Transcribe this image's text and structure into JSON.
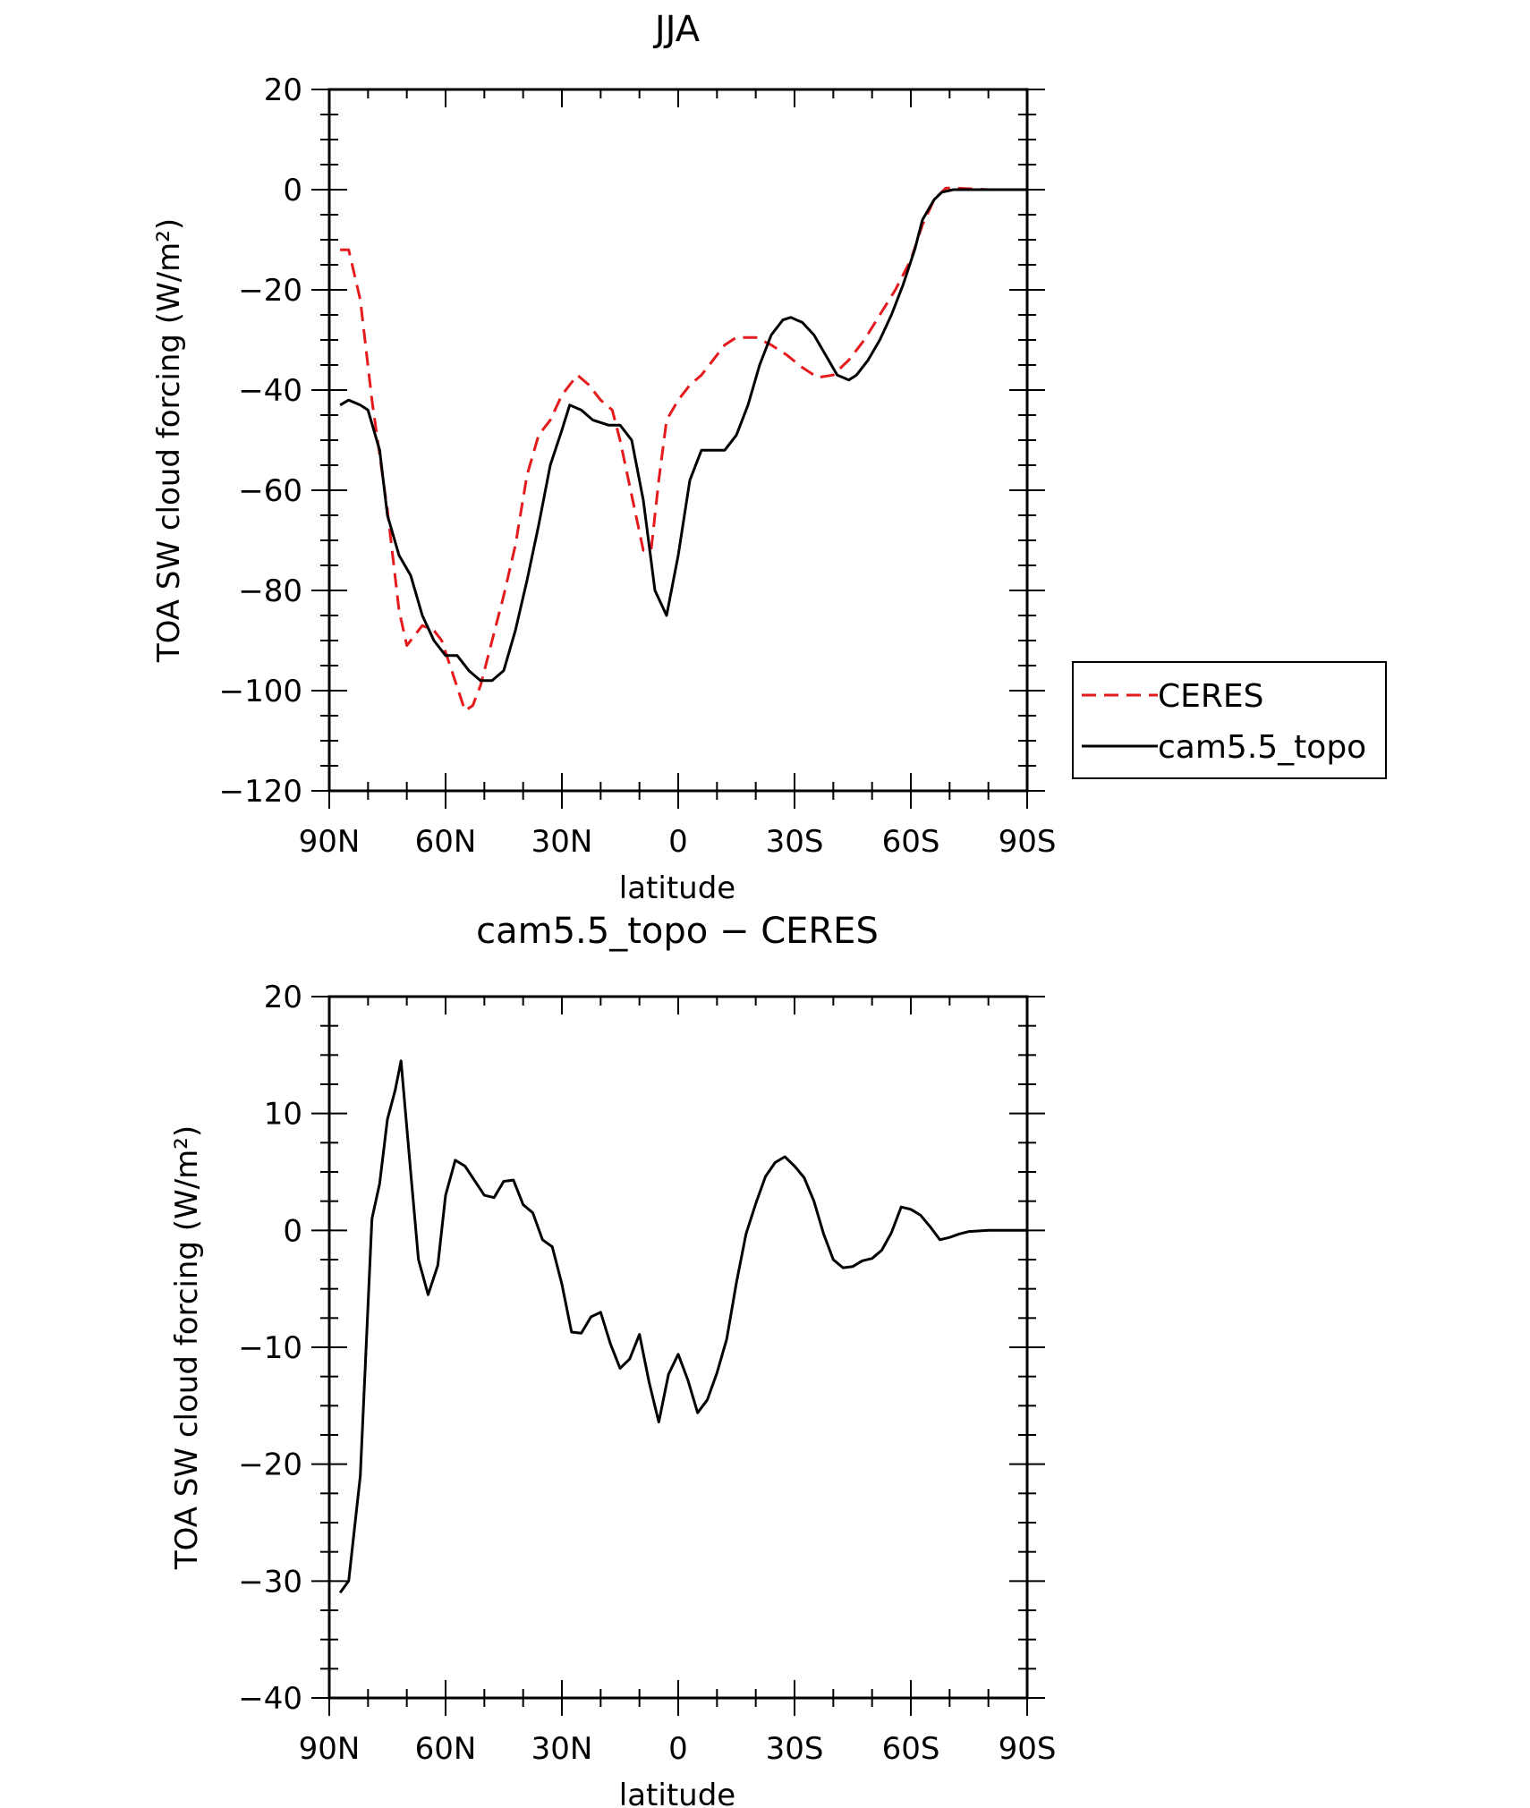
{
  "chart_data": [
    {
      "type": "line",
      "title": "JJA",
      "xlabel": "latitude",
      "ylabel": "TOA SW cloud forcing (W/m²)",
      "xticks": [
        "90N",
        "60N",
        "30N",
        "0",
        "30S",
        "60S",
        "90S"
      ],
      "xlim": [
        90,
        -90
      ],
      "ylim": [
        -120,
        20
      ],
      "yticks": [
        "20",
        "0",
        "−20",
        "−40",
        "−60",
        "−80",
        "−100",
        "−120"
      ],
      "legend": {
        "placement": "right",
        "entries": [
          "CERES",
          "cam5.5_topo"
        ]
      },
      "series": [
        {
          "name": "CERES",
          "color": "#e41a1c",
          "style": "dashed",
          "points": [
            [
              87.2,
              -12
            ],
            [
              85,
              -12
            ],
            [
              82,
              -22
            ],
            [
              79,
              -42
            ],
            [
              75,
              -64
            ],
            [
              72,
              -84
            ],
            [
              70,
              -91
            ],
            [
              66,
              -87
            ],
            [
              63,
              -88
            ],
            [
              61,
              -90
            ],
            [
              58,
              -97
            ],
            [
              55,
              -104
            ],
            [
              53,
              -103
            ],
            [
              51,
              -99
            ],
            [
              48,
              -90
            ],
            [
              45,
              -81
            ],
            [
              42,
              -71
            ],
            [
              39,
              -57
            ],
            [
              36,
              -49
            ],
            [
              33,
              -46
            ],
            [
              30,
              -41
            ],
            [
              26,
              -37
            ],
            [
              23,
              -39
            ],
            [
              20,
              -42
            ],
            [
              17,
              -44
            ],
            [
              15,
              -50
            ],
            [
              12,
              -61
            ],
            [
              9,
              -72
            ],
            [
              7,
              -72
            ],
            [
              5,
              -58
            ],
            [
              3,
              -46
            ],
            [
              0,
              -42
            ],
            [
              -3,
              -39
            ],
            [
              -6,
              -37
            ],
            [
              -9,
              -34
            ],
            [
              -12,
              -31
            ],
            [
              -15,
              -29.5
            ],
            [
              -20,
              -29.5
            ],
            [
              -24,
              -31
            ],
            [
              -28,
              -33
            ],
            [
              -32,
              -35.5
            ],
            [
              -36,
              -37.5
            ],
            [
              -40,
              -37
            ],
            [
              -44,
              -34
            ],
            [
              -48,
              -30
            ],
            [
              -52,
              -25
            ],
            [
              -56,
              -20
            ],
            [
              -60,
              -14
            ],
            [
              -63,
              -7
            ],
            [
              -66,
              -2
            ],
            [
              -69,
              0.3
            ],
            [
              -72,
              0.3
            ],
            [
              -80,
              0
            ],
            [
              -90,
              0
            ]
          ]
        },
        {
          "name": "cam5.5_topo",
          "color": "#000000",
          "style": "solid",
          "points": [
            [
              87.2,
              -43
            ],
            [
              85,
              -42
            ],
            [
              82,
              -43
            ],
            [
              80,
              -44
            ],
            [
              77,
              -52
            ],
            [
              75,
              -65
            ],
            [
              72,
              -73
            ],
            [
              69,
              -77
            ],
            [
              66,
              -85
            ],
            [
              63,
              -90
            ],
            [
              60,
              -93
            ],
            [
              57,
              -93
            ],
            [
              54,
              -96
            ],
            [
              51,
              -98
            ],
            [
              48,
              -98
            ],
            [
              45,
              -96
            ],
            [
              42,
              -88
            ],
            [
              39,
              -78
            ],
            [
              36,
              -67
            ],
            [
              33,
              -55
            ],
            [
              30,
              -48
            ],
            [
              28,
              -43
            ],
            [
              25,
              -44
            ],
            [
              22,
              -46
            ],
            [
              18,
              -47
            ],
            [
              15,
              -47
            ],
            [
              12,
              -50
            ],
            [
              9,
              -62
            ],
            [
              6,
              -80
            ],
            [
              3,
              -85
            ],
            [
              0,
              -73
            ],
            [
              -3,
              -58
            ],
            [
              -6,
              -52
            ],
            [
              -9,
              -52
            ],
            [
              -12,
              -52
            ],
            [
              -15,
              -49
            ],
            [
              -18,
              -43
            ],
            [
              -21,
              -35
            ],
            [
              -24,
              -29
            ],
            [
              -27,
              -26
            ],
            [
              -29,
              -25.5
            ],
            [
              -32,
              -26.5
            ],
            [
              -35,
              -29
            ],
            [
              -38,
              -33
            ],
            [
              -41,
              -37
            ],
            [
              -44,
              -38
            ],
            [
              -46,
              -37
            ],
            [
              -49,
              -34
            ],
            [
              -52,
              -30
            ],
            [
              -55,
              -25
            ],
            [
              -58,
              -19
            ],
            [
              -61,
              -12
            ],
            [
              -63,
              -6
            ],
            [
              -66,
              -2
            ],
            [
              -68,
              -0.5
            ],
            [
              -71,
              0
            ],
            [
              -75,
              0
            ],
            [
              -90,
              0
            ]
          ]
        }
      ]
    },
    {
      "type": "line",
      "title": "cam5.5_topo − CERES",
      "xlabel": "latitude",
      "ylabel": "TOA SW cloud forcing (W/m²)",
      "xticks": [
        "90N",
        "60N",
        "30N",
        "0",
        "30S",
        "60S",
        "90S"
      ],
      "xlim": [
        90,
        -90
      ],
      "ylim": [
        -40,
        20
      ],
      "yticks": [
        "20",
        "10",
        "0",
        "−10",
        "−20",
        "−30",
        "−40"
      ],
      "series": [
        {
          "color": "#000000",
          "style": "solid",
          "points": [
            [
              87.2,
              -31
            ],
            [
              85,
              -30
            ],
            [
              82,
              -21
            ],
            [
              79,
              1
            ],
            [
              77,
              4
            ],
            [
              75,
              9.5
            ],
            [
              73,
              12
            ],
            [
              71.5,
              14.5
            ],
            [
              69,
              5
            ],
            [
              67,
              -2.5
            ],
            [
              64.5,
              -5.5
            ],
            [
              62,
              -3
            ],
            [
              60,
              3
            ],
            [
              57.5,
              6
            ],
            [
              55,
              5.5
            ],
            [
              52,
              4
            ],
            [
              50,
              3
            ],
            [
              47.5,
              2.8
            ],
            [
              45,
              4.2
            ],
            [
              42.5,
              4.3
            ],
            [
              40,
              2.2
            ],
            [
              37.5,
              1.5
            ],
            [
              35,
              -0.8
            ],
            [
              32.5,
              -1.4
            ],
            [
              30,
              -4.6
            ],
            [
              27.5,
              -8.7
            ],
            [
              25,
              -8.8
            ],
            [
              22.5,
              -7.4
            ],
            [
              20,
              -7
            ],
            [
              17.5,
              -9.7
            ],
            [
              15,
              -11.8
            ],
            [
              12.5,
              -11
            ],
            [
              10,
              -8.9
            ],
            [
              7.5,
              -13
            ],
            [
              5,
              -16.4
            ],
            [
              2.5,
              -12.3
            ],
            [
              0,
              -10.6
            ],
            [
              -2.5,
              -12.8
            ],
            [
              -5,
              -15.6
            ],
            [
              -7.5,
              -14.5
            ],
            [
              -10,
              -12.2
            ],
            [
              -12.5,
              -9.3
            ],
            [
              -15,
              -4.5
            ],
            [
              -17.5,
              -0.3
            ],
            [
              -20,
              2.3
            ],
            [
              -22.5,
              4.6
            ],
            [
              -25,
              5.8
            ],
            [
              -27.5,
              6.3
            ],
            [
              -30,
              5.5
            ],
            [
              -32.5,
              4.5
            ],
            [
              -35,
              2.5
            ],
            [
              -37.5,
              -0.3
            ],
            [
              -40,
              -2.5
            ],
            [
              -42.5,
              -3.2
            ],
            [
              -45,
              -3.1
            ],
            [
              -47.5,
              -2.6
            ],
            [
              -50,
              -2.4
            ],
            [
              -52.5,
              -1.7
            ],
            [
              -55,
              -0.2
            ],
            [
              -57.5,
              2
            ],
            [
              -60,
              1.8
            ],
            [
              -62.5,
              1.3
            ],
            [
              -65,
              0.3
            ],
            [
              -67.5,
              -0.8
            ],
            [
              -70,
              -0.6
            ],
            [
              -72.5,
              -0.3
            ],
            [
              -75,
              -0.1
            ],
            [
              -80,
              0
            ],
            [
              -90,
              0
            ]
          ]
        }
      ]
    }
  ]
}
